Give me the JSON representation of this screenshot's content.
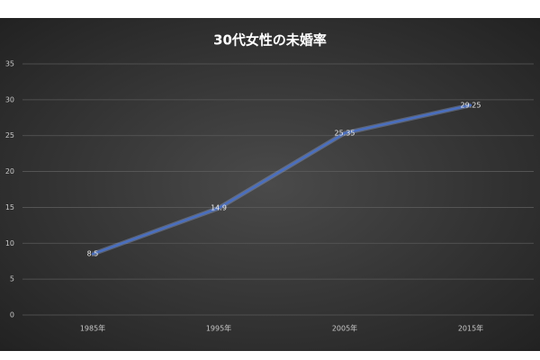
{
  "chart_data": {
    "type": "line",
    "title": "30代女性の未婚率",
    "categories": [
      "1985年",
      "1995年",
      "2005年",
      "2015年"
    ],
    "values": [
      8.5,
      14.9,
      25.35,
      29.25
    ],
    "color": "#4a6fc0",
    "ylim": [
      0,
      35
    ],
    "yticks": [
      0,
      5,
      10,
      15,
      20,
      25,
      30,
      35
    ],
    "grid": true,
    "data_labels": true
  }
}
